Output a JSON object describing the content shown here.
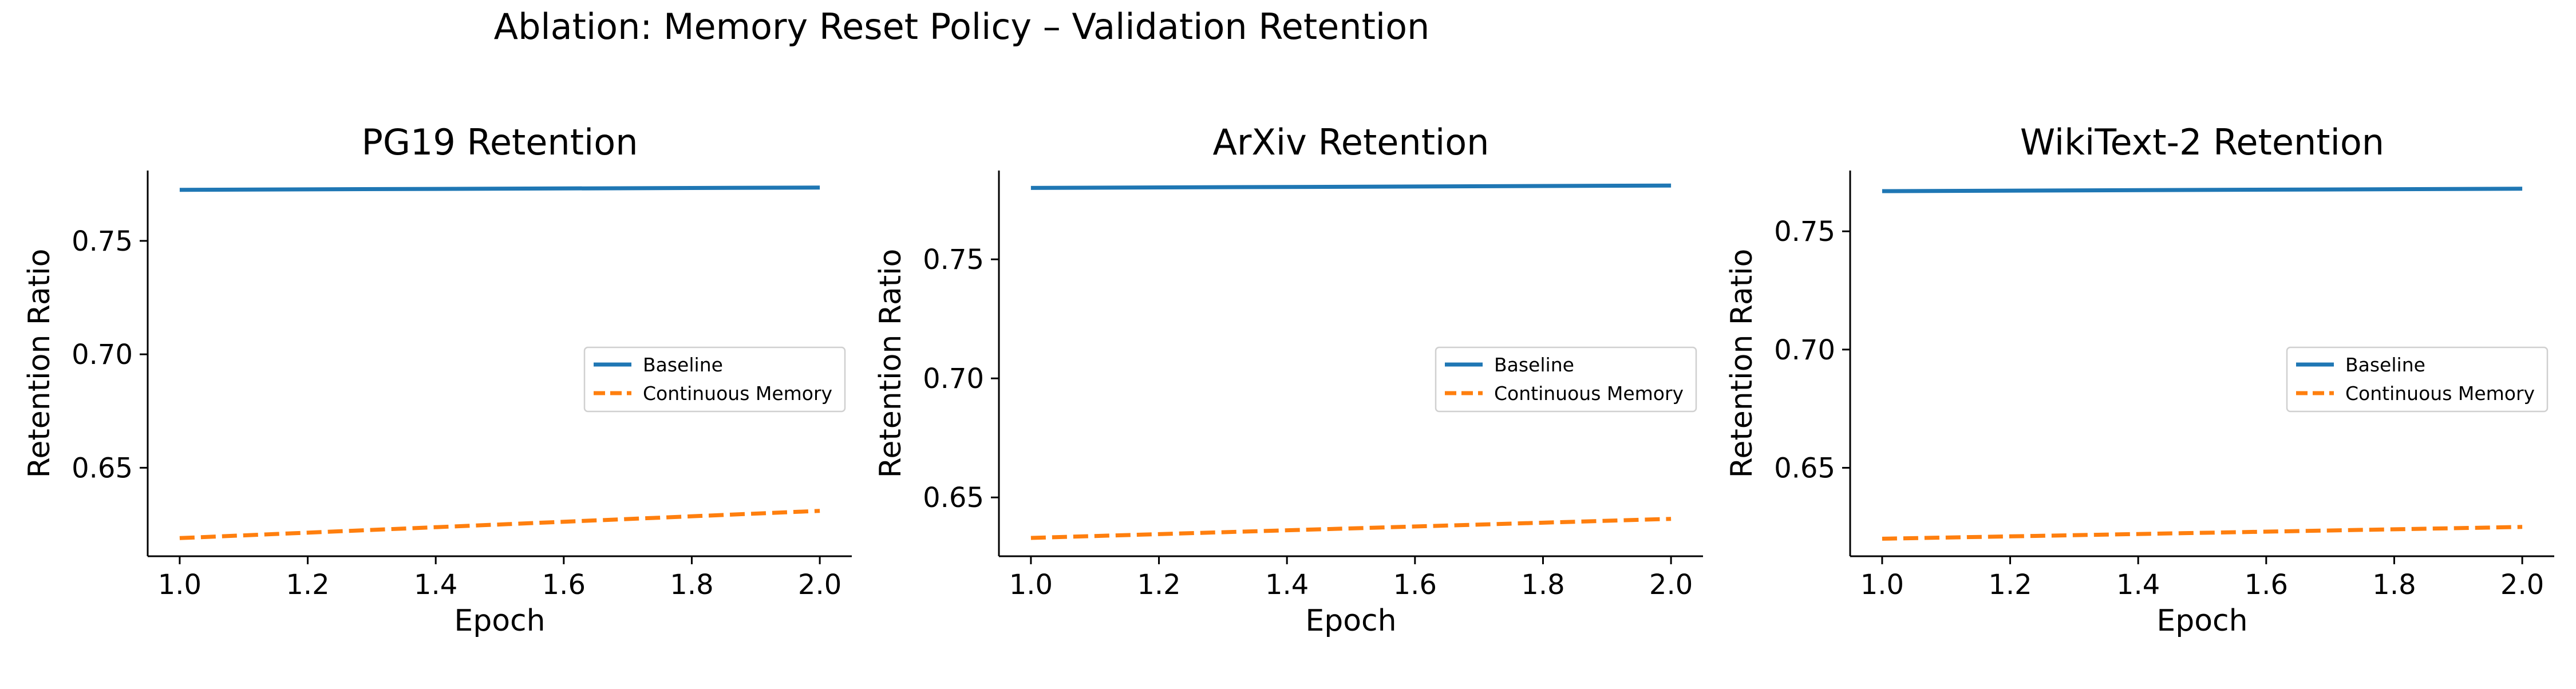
{
  "figure": {
    "suptitle": "Ablation: Memory Reset Policy – Validation Retention"
  },
  "colors": {
    "baseline": "#1f77b4",
    "continuous": "#ff7f0e"
  },
  "chart_data": [
    {
      "type": "line",
      "title": "PG19 Retention",
      "xlabel": "Epoch",
      "ylabel": "Retention Ratio",
      "x": [
        1.0,
        2.0
      ],
      "xlim": [
        0.95,
        2.05
      ],
      "ylim": [
        0.611,
        0.781
      ],
      "xticks": [
        1.0,
        1.2,
        1.4,
        1.6,
        1.8,
        2.0
      ],
      "xtick_labels": [
        "1.0",
        "1.2",
        "1.4",
        "1.6",
        "1.8",
        "2.0"
      ],
      "yticks": [
        0.65,
        0.7,
        0.75
      ],
      "ytick_labels": [
        "0.65",
        "0.70",
        "0.75"
      ],
      "legend_position": "center-right",
      "series": [
        {
          "name": "Baseline",
          "values": [
            0.7725,
            0.7735
          ],
          "style": "solid"
        },
        {
          "name": "Continuous Memory",
          "values": [
            0.619,
            0.631
          ],
          "style": "dashed"
        }
      ]
    },
    {
      "type": "line",
      "title": "ArXiv Retention",
      "xlabel": "Epoch",
      "ylabel": "Retention Ratio",
      "x": [
        1.0,
        2.0
      ],
      "xlim": [
        0.95,
        2.05
      ],
      "ylim": [
        0.6253,
        0.7873
      ],
      "xticks": [
        1.0,
        1.2,
        1.4,
        1.6,
        1.8,
        2.0
      ],
      "xtick_labels": [
        "1.0",
        "1.2",
        "1.4",
        "1.6",
        "1.8",
        "2.0"
      ],
      "yticks": [
        0.65,
        0.7,
        0.75
      ],
      "ytick_labels": [
        "0.65",
        "0.70",
        "0.75"
      ],
      "legend_position": "center-right",
      "series": [
        {
          "name": "Baseline",
          "values": [
            0.78,
            0.781
          ],
          "style": "solid"
        },
        {
          "name": "Continuous Memory",
          "values": [
            0.633,
            0.641
          ],
          "style": "dashed"
        }
      ]
    },
    {
      "type": "line",
      "title": "WikiText-2 Retention",
      "xlabel": "Epoch",
      "ylabel": "Retention Ratio",
      "x": [
        1.0,
        2.0
      ],
      "xlim": [
        0.95,
        2.05
      ],
      "ylim": [
        0.6126,
        0.7757
      ],
      "xticks": [
        1.0,
        1.2,
        1.4,
        1.6,
        1.8,
        2.0
      ],
      "xtick_labels": [
        "1.0",
        "1.2",
        "1.4",
        "1.6",
        "1.8",
        "2.0"
      ],
      "yticks": [
        0.65,
        0.7,
        0.75
      ],
      "ytick_labels": [
        "0.65",
        "0.70",
        "0.75"
      ],
      "legend_position": "center-right",
      "series": [
        {
          "name": "Baseline",
          "values": [
            0.767,
            0.768
          ],
          "style": "solid"
        },
        {
          "name": "Continuous Memory",
          "values": [
            0.62,
            0.625
          ],
          "style": "dashed"
        }
      ]
    }
  ]
}
